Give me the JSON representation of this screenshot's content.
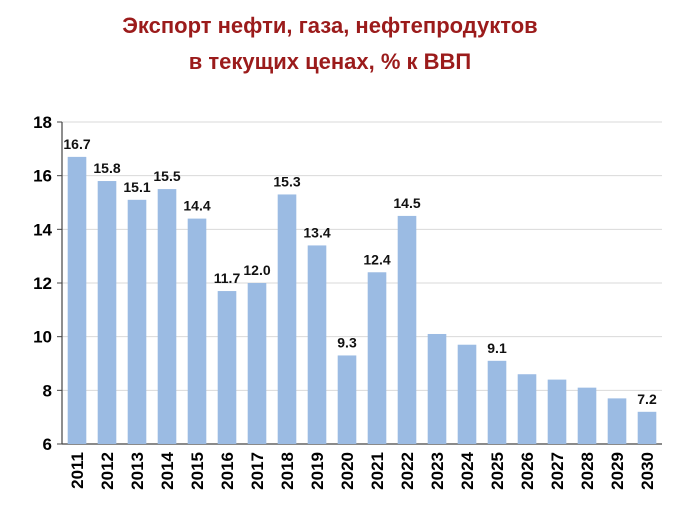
{
  "chart_data": {
    "type": "bar",
    "title": "Экспорт нефти, газа, нефтепродуктов в текущих ценах, % к ВВП",
    "title_lines": [
      "Экспорт нефти, газа, нефтепродуктов",
      "в текущих ценах, % к ВВП"
    ],
    "categories": [
      "2011",
      "2012",
      "2013",
      "2014",
      "2015",
      "2016",
      "2017",
      "2018",
      "2019",
      "2020",
      "2021",
      "2022",
      "2023",
      "2024",
      "2025",
      "2026",
      "2027",
      "2028",
      "2029",
      "2030"
    ],
    "values": [
      16.7,
      15.8,
      15.1,
      15.5,
      14.4,
      11.7,
      12.0,
      15.3,
      13.4,
      9.3,
      12.4,
      14.5,
      10.1,
      9.7,
      9.1,
      8.6,
      8.4,
      8.1,
      7.7,
      7.2
    ],
    "data_labels": [
      "16.7",
      "15.8",
      "15.1",
      "15.5",
      "14.4",
      "11.7",
      "12.0",
      "15.3",
      "13.4",
      "9.3",
      "12.4",
      "14.5",
      "",
      "",
      "9.1",
      "",
      "",
      "",
      "",
      "7.2"
    ],
    "ylim": [
      6,
      18
    ],
    "yticks": [
      6,
      8,
      10,
      12,
      14,
      16,
      18
    ],
    "ytick_labels": [
      "6",
      "8",
      "10",
      "12",
      "14",
      "16",
      "18"
    ],
    "grid": "horizontal",
    "xlabel": "",
    "ylabel": "",
    "bar_color": "#9bbbe3",
    "grid_color": "#d9d9d9"
  }
}
